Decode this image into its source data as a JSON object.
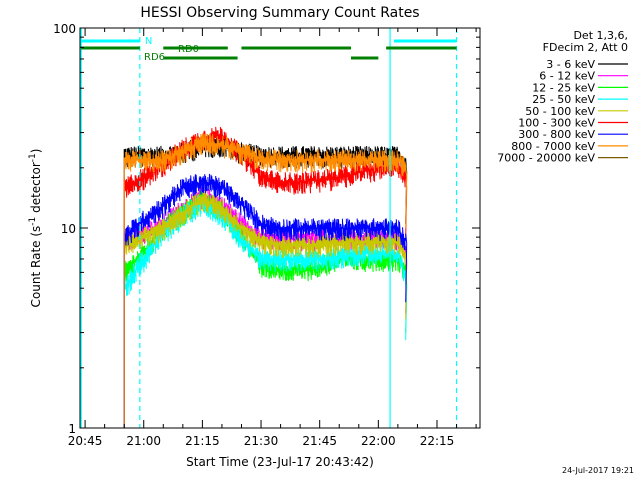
{
  "colors": {
    "background": "#ffffff",
    "axes": "#000000",
    "attenuator_lines": "#00ffff",
    "rd_bars": "#008000",
    "night_bar": "#00ffff"
  },
  "chart_data": {
    "type": "line",
    "title": "HESSI Observing Summary Count Rates",
    "xlabel": "Start Time (23-Jul-17 20:43:42)",
    "ylabel": "Count Rate (s",
    "ylabel_sup": "-1",
    "ylabel_tail": "detector",
    "ylabel_sup2": "-1",
    "ylabel_close": ")",
    "xlim": [
      "20:43:42",
      "22:26:00"
    ],
    "ylim": [
      1,
      100
    ],
    "yscale": "log",
    "x_ticks": [
      "20:45",
      "21:00",
      "21:15",
      "21:30",
      "21:45",
      "22:00",
      "22:15"
    ],
    "y_ticks": [
      "1",
      "10",
      "100"
    ],
    "legend_header": [
      "Det 1,3,6,",
      "FDecim 2, Att 0"
    ],
    "legend_position": "right",
    "timestamp": "24-Jul-2017 19:21",
    "markers": {
      "night_label": "N",
      "rd0_label": "RD0",
      "rd6_label": "RD6",
      "solid_vertical_times": [
        "20:44:00",
        "22:03:00"
      ],
      "dashed_vertical_times": [
        "20:59:00",
        "22:20:00"
      ],
      "night_intervals": [
        [
          "20:44:00",
          "20:59:00"
        ],
        [
          "22:04:00",
          "22:20:00"
        ]
      ],
      "rd0_intervals": [
        [
          "20:44:00",
          "20:59:00"
        ],
        [
          "21:05:00",
          "21:21:30"
        ],
        [
          "21:25:00",
          "21:53:00"
        ],
        [
          "22:02:00",
          "22:20:00"
        ]
      ],
      "rd6_intervals": [
        [
          "21:05:00",
          "21:24:00"
        ],
        [
          "21:53:00",
          "22:00:00"
        ]
      ]
    },
    "series": [
      {
        "name": "3 - 6 keV",
        "color": "#000000",
        "points": [
          [
            "20:55",
            "23"
          ],
          [
            "21:00",
            "23"
          ],
          [
            "21:05",
            "23"
          ],
          [
            "21:10",
            "24"
          ],
          [
            "21:15",
            "26"
          ],
          [
            "21:20",
            "26"
          ],
          [
            "21:25",
            "24"
          ],
          [
            "21:30",
            "23"
          ],
          [
            "21:35",
            "23"
          ],
          [
            "21:40",
            "23"
          ],
          [
            "21:45",
            "23"
          ],
          [
            "21:50",
            "23"
          ],
          [
            "21:55",
            "23"
          ],
          [
            "22:00",
            "23"
          ],
          [
            "22:05",
            "23"
          ],
          [
            "22:07",
            "21"
          ]
        ]
      },
      {
        "name": "6 - 12 keV",
        "color": "#ff00ff",
        "points": [
          [
            "20:55",
            "8.8"
          ],
          [
            "21:00",
            "9.5"
          ],
          [
            "21:05",
            "10.5"
          ],
          [
            "21:10",
            "12.5"
          ],
          [
            "21:15",
            "14.5"
          ],
          [
            "21:20",
            "13"
          ],
          [
            "21:25",
            "10.5"
          ],
          [
            "21:30",
            "9"
          ],
          [
            "21:35",
            "8.8"
          ],
          [
            "21:40",
            "8.8"
          ],
          [
            "21:45",
            "8.8"
          ],
          [
            "21:50",
            "8.8"
          ],
          [
            "21:55",
            "8.8"
          ],
          [
            "22:00",
            "8.8"
          ],
          [
            "22:05",
            "8.8"
          ],
          [
            "22:07",
            "7.5"
          ]
        ]
      },
      {
        "name": "12 - 25 keV",
        "color": "#00ff00",
        "points": [
          [
            "20:55",
            "6"
          ],
          [
            "21:00",
            "7.5"
          ],
          [
            "21:05",
            "10"
          ],
          [
            "21:10",
            "12"
          ],
          [
            "21:15",
            "14"
          ],
          [
            "21:20",
            "12"
          ],
          [
            "21:25",
            "9"
          ],
          [
            "21:30",
            "6.5"
          ],
          [
            "21:35",
            "6.2"
          ],
          [
            "21:40",
            "6.2"
          ],
          [
            "21:45",
            "6.5"
          ],
          [
            "21:50",
            "7"
          ],
          [
            "21:55",
            "7"
          ],
          [
            "22:00",
            "7"
          ],
          [
            "22:05",
            "7"
          ],
          [
            "22:07",
            "6"
          ]
        ]
      },
      {
        "name": "25 - 50 keV",
        "color": "#00ffff",
        "points": [
          [
            "20:55",
            "5"
          ],
          [
            "21:00",
            "7"
          ],
          [
            "21:05",
            "9.5"
          ],
          [
            "21:10",
            "11.5"
          ],
          [
            "21:15",
            "13.5"
          ],
          [
            "21:20",
            "11.5"
          ],
          [
            "21:25",
            "8.5"
          ],
          [
            "21:30",
            "7"
          ],
          [
            "21:35",
            "7"
          ],
          [
            "21:40",
            "7"
          ],
          [
            "21:45",
            "7"
          ],
          [
            "21:50",
            "7.2"
          ],
          [
            "21:55",
            "7.5"
          ],
          [
            "22:00",
            "7.5"
          ],
          [
            "22:05",
            "7.5"
          ],
          [
            "22:07",
            "5.5"
          ]
        ]
      },
      {
        "name": "50 - 100 keV",
        "color": "#c8c800",
        "points": [
          [
            "20:55",
            "8.5"
          ],
          [
            "21:00",
            "9"
          ],
          [
            "21:05",
            "10"
          ],
          [
            "21:10",
            "12"
          ],
          [
            "21:15",
            "14"
          ],
          [
            "21:20",
            "12.5"
          ],
          [
            "21:25",
            "10"
          ],
          [
            "21:30",
            "8.5"
          ],
          [
            "21:35",
            "8.2"
          ],
          [
            "21:40",
            "8.2"
          ],
          [
            "21:45",
            "8.2"
          ],
          [
            "21:50",
            "8.5"
          ],
          [
            "21:55",
            "8.5"
          ],
          [
            "22:00",
            "8.5"
          ],
          [
            "22:05",
            "8.5"
          ],
          [
            "22:07",
            "7"
          ]
        ]
      },
      {
        "name": "100 - 300 keV",
        "color": "#ff0000",
        "points": [
          [
            "20:55",
            "16"
          ],
          [
            "21:00",
            "18"
          ],
          [
            "21:05",
            "21"
          ],
          [
            "21:10",
            "25"
          ],
          [
            "21:15",
            "28"
          ],
          [
            "21:20",
            "29"
          ],
          [
            "21:25",
            "23"
          ],
          [
            "21:30",
            "18"
          ],
          [
            "21:35",
            "17"
          ],
          [
            "21:40",
            "17"
          ],
          [
            "21:45",
            "17.5"
          ],
          [
            "21:50",
            "18"
          ],
          [
            "21:55",
            "19"
          ],
          [
            "22:00",
            "20"
          ],
          [
            "22:05",
            "20"
          ],
          [
            "22:07",
            "18"
          ]
        ]
      },
      {
        "name": "300 - 800 keV",
        "color": "#0000ff",
        "points": [
          [
            "20:55",
            "9"
          ],
          [
            "21:00",
            "11"
          ],
          [
            "21:05",
            "13"
          ],
          [
            "21:10",
            "16"
          ],
          [
            "21:15",
            "17"
          ],
          [
            "21:20",
            "16"
          ],
          [
            "21:25",
            "13"
          ],
          [
            "21:30",
            "10.5"
          ],
          [
            "21:35",
            "10"
          ],
          [
            "21:40",
            "10"
          ],
          [
            "21:45",
            "10"
          ],
          [
            "21:50",
            "10"
          ],
          [
            "21:55",
            "10"
          ],
          [
            "22:00",
            "10"
          ],
          [
            "22:05",
            "10"
          ],
          [
            "22:07",
            "8.5"
          ]
        ]
      },
      {
        "name": "800 - 7000 keV",
        "color": "#ff8c00",
        "points": [
          [
            "20:55",
            "22"
          ],
          [
            "21:00",
            "22"
          ],
          [
            "21:05",
            "22"
          ],
          [
            "21:10",
            "24"
          ],
          [
            "21:15",
            "27"
          ],
          [
            "21:20",
            "26"
          ],
          [
            "21:25",
            "24"
          ],
          [
            "21:30",
            "22"
          ],
          [
            "21:35",
            "22"
          ],
          [
            "21:40",
            "22"
          ],
          [
            "21:45",
            "22"
          ],
          [
            "21:50",
            "22"
          ],
          [
            "21:55",
            "22"
          ],
          [
            "22:00",
            "22"
          ],
          [
            "22:05",
            "22"
          ],
          [
            "22:07",
            "20"
          ]
        ]
      },
      {
        "name": "7000 - 20000 keV",
        "color": "#7a5c00",
        "points": []
      }
    ]
  }
}
